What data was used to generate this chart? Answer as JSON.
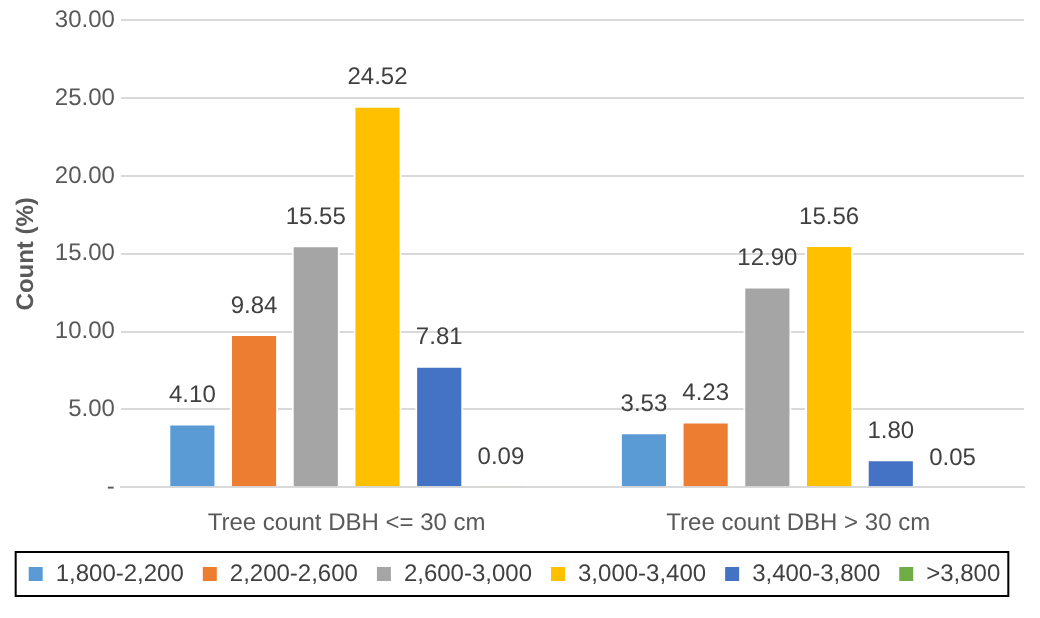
{
  "chart_data": {
    "type": "bar",
    "ylabel": "Count (%)",
    "categories": [
      "Tree count DBH <= 30 cm",
      "Tree count DBH > 30 cm"
    ],
    "series": [
      {
        "name": "1,800-2,200",
        "color": "#5b9bd5",
        "values": [
          4.1,
          3.53
        ],
        "value_labels": [
          "4.10",
          "3.53"
        ]
      },
      {
        "name": "2,200-2,600",
        "color": "#ed7d31",
        "values": [
          9.84,
          4.23
        ],
        "value_labels": [
          "9.84",
          "4.23"
        ]
      },
      {
        "name": "2,600-3,000",
        "color": "#a5a5a5",
        "values": [
          15.55,
          12.9
        ],
        "value_labels": [
          "15.55",
          "12.90"
        ]
      },
      {
        "name": "3,000-3,400",
        "color": "#ffc000",
        "values": [
          24.52,
          15.56
        ],
        "value_labels": [
          "24.52",
          "15.56"
        ]
      },
      {
        "name": "3,400-3,800",
        "color": "#4472c4",
        "values": [
          7.81,
          1.8
        ],
        "value_labels": [
          "7.81",
          "1.80"
        ]
      },
      {
        "name": ">3,800",
        "color": "#70ad47",
        "values": [
          0.09,
          0.05
        ],
        "value_labels": [
          "0.09",
          "0.05"
        ]
      }
    ],
    "ylim": [
      0,
      30
    ],
    "yticks": [
      {
        "value": 0,
        "label": "-"
      },
      {
        "value": 5,
        "label": "5.00"
      },
      {
        "value": 10,
        "label": "10.00"
      },
      {
        "value": 15,
        "label": "15.00"
      },
      {
        "value": 20,
        "label": "20.00"
      },
      {
        "value": 25,
        "label": "25.00"
      },
      {
        "value": 30,
        "label": "30.00"
      }
    ],
    "grid": "y",
    "legend": "bottom"
  }
}
